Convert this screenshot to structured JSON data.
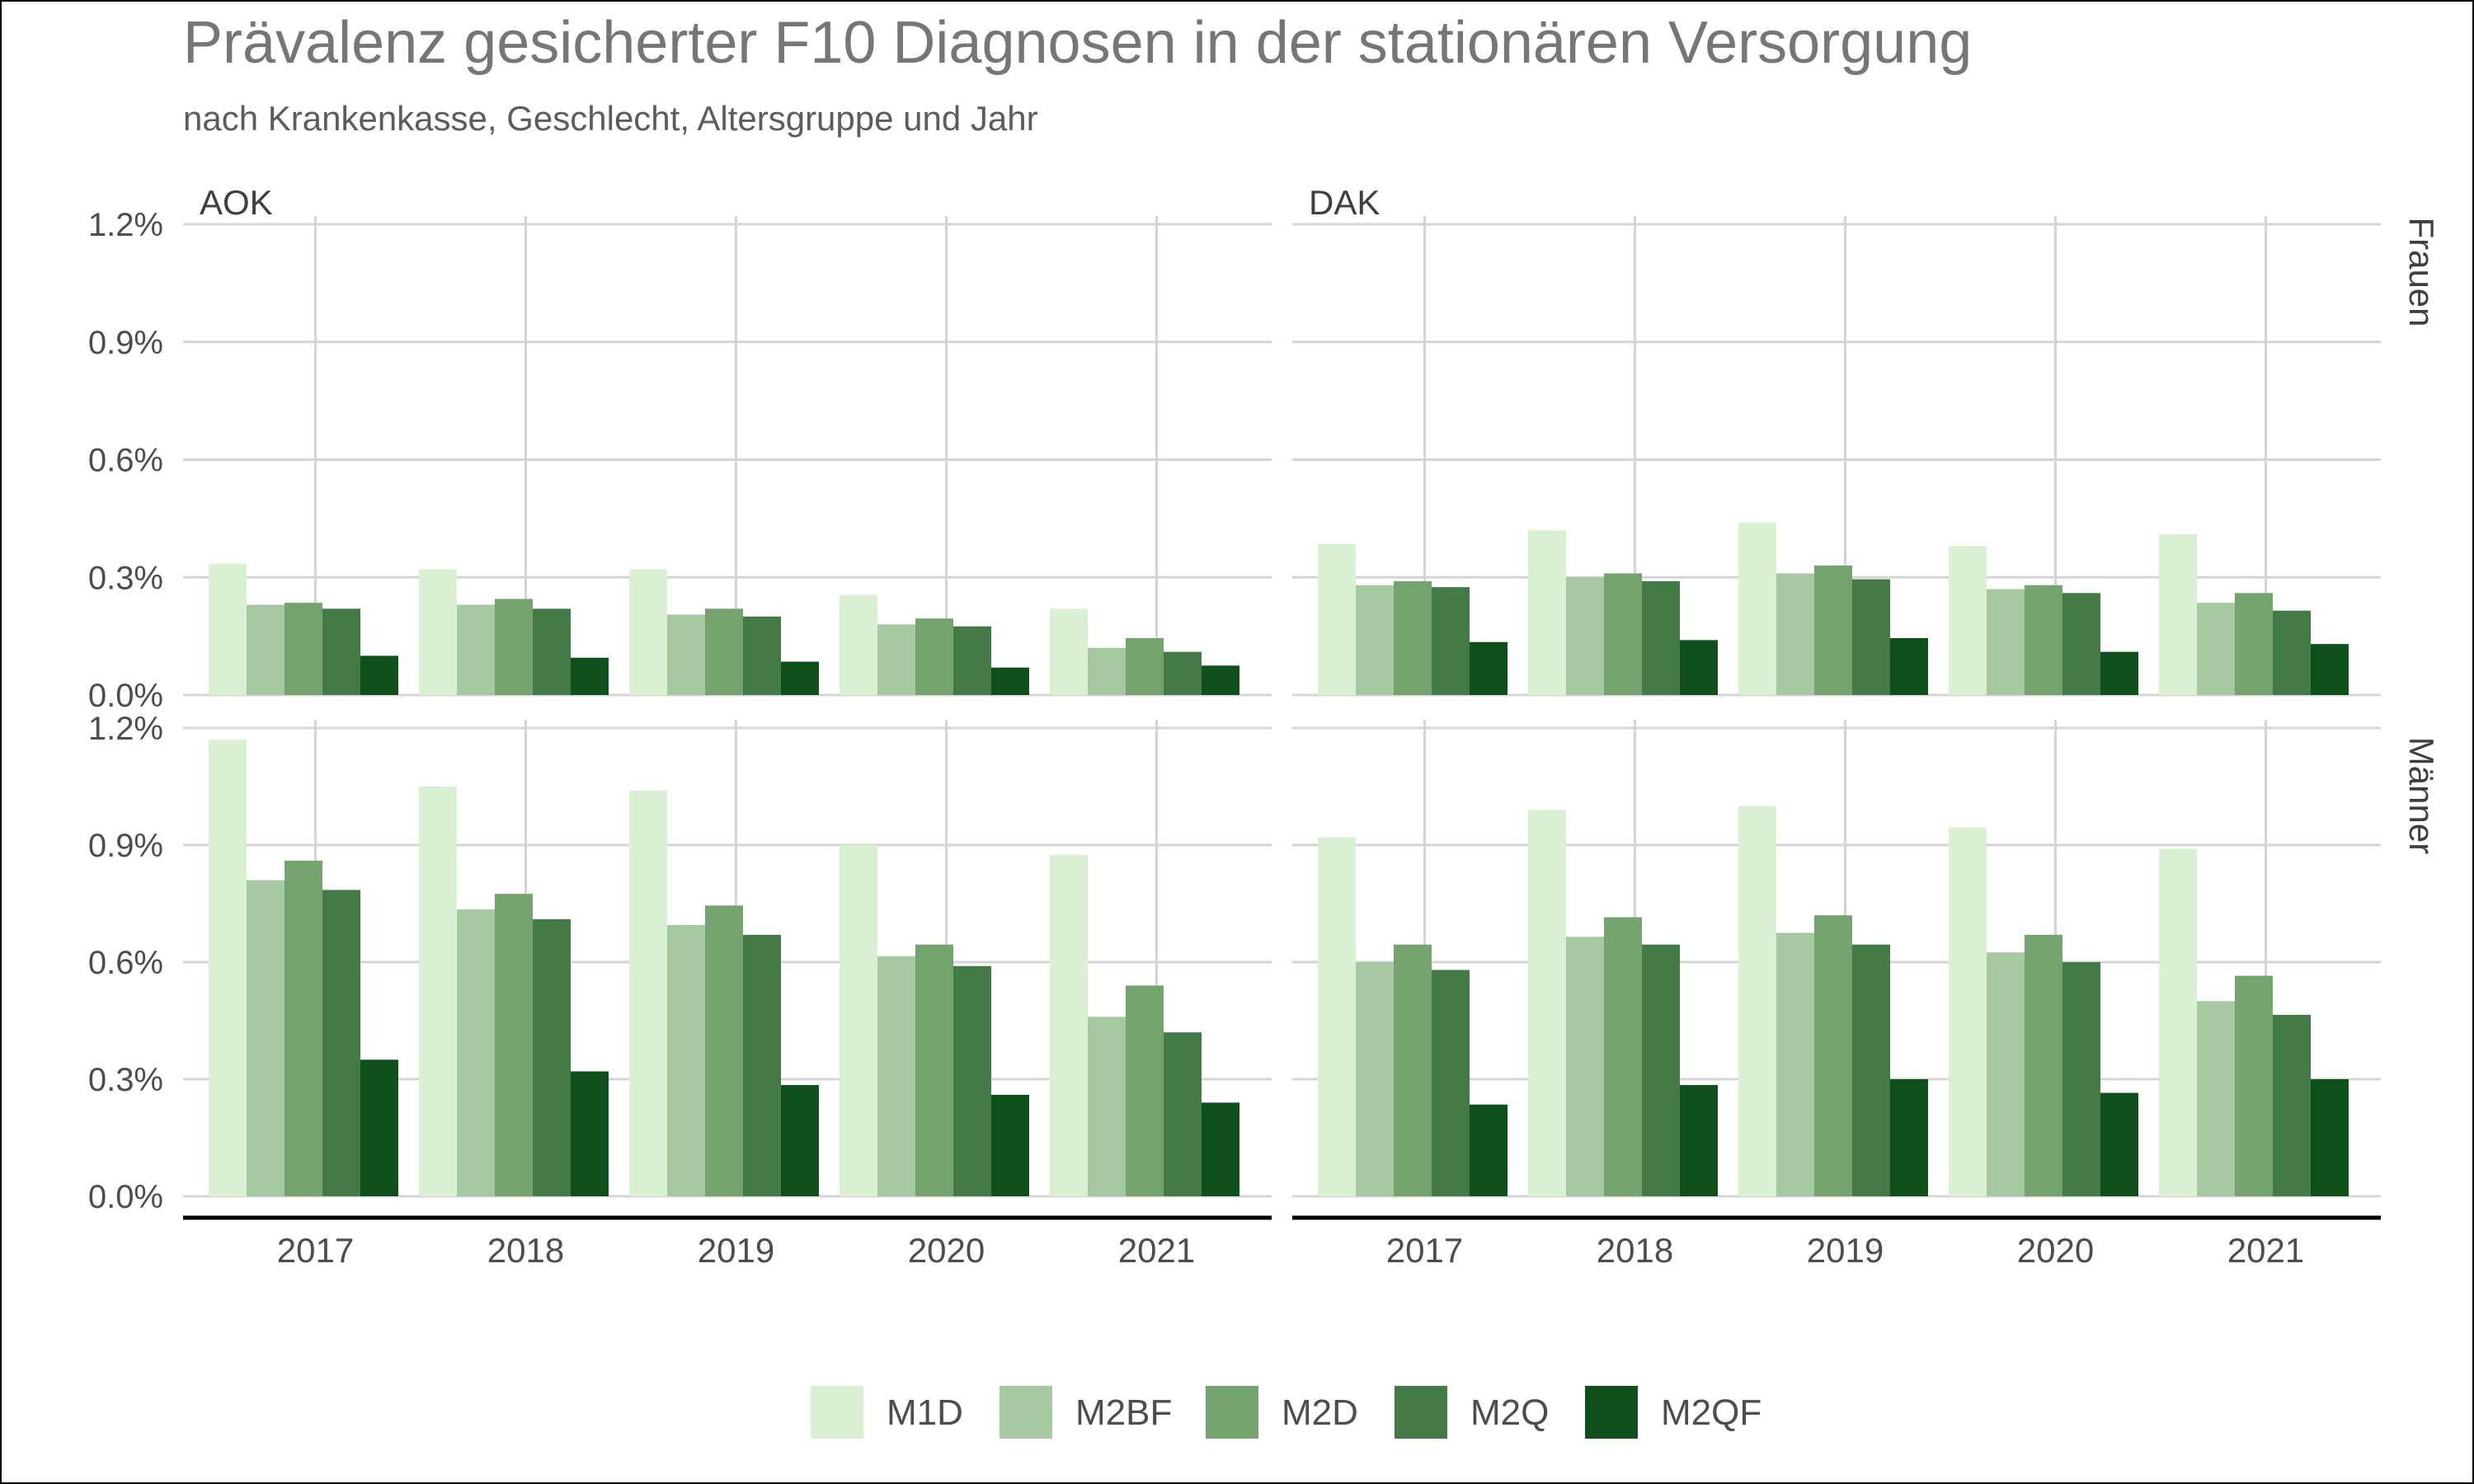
{
  "chart_data": {
    "type": "bar",
    "title": "Prävalenz gesicherter F10 Diagnosen in der stationären Versorgung",
    "subtitle": "nach Krankenkasse, Geschlecht, Altersgruppe und Jahr",
    "xlabel": "",
    "ylabel": "",
    "x": [
      "2017",
      "2018",
      "2019",
      "2020",
      "2021"
    ],
    "ylim": [
      0,
      1.2
    ],
    "yticks": [
      "0.0%",
      "0.3%",
      "0.6%",
      "0.9%",
      "1.2%"
    ],
    "column_facets": [
      "AOK",
      "DAK"
    ],
    "row_facets": [
      "Frauen",
      "Männer"
    ],
    "legend_position": "bottom",
    "grid": true,
    "series_names": [
      "M1D",
      "M2BF",
      "M2D",
      "M2Q",
      "M2QF"
    ],
    "colors": [
      "#d9f0d3",
      "#a6c8a0",
      "#74a370",
      "#437a48",
      "#0f4f1b"
    ],
    "panels": [
      {
        "column": "AOK",
        "row": "Frauen",
        "series": [
          {
            "name": "M1D",
            "values": [
              0.335,
              0.32,
              0.32,
              0.255,
              0.22
            ]
          },
          {
            "name": "M2BF",
            "values": [
              0.23,
              0.23,
              0.205,
              0.18,
              0.12
            ]
          },
          {
            "name": "M2D",
            "values": [
              0.235,
              0.245,
              0.22,
              0.195,
              0.145
            ]
          },
          {
            "name": "M2Q",
            "values": [
              0.22,
              0.22,
              0.2,
              0.175,
              0.11
            ]
          },
          {
            "name": "M2QF",
            "values": [
              0.1,
              0.095,
              0.085,
              0.07,
              0.075
            ]
          }
        ]
      },
      {
        "column": "DAK",
        "row": "Frauen",
        "series": [
          {
            "name": "M1D",
            "values": [
              0.385,
              0.42,
              0.44,
              0.38,
              0.41
            ]
          },
          {
            "name": "M2BF",
            "values": [
              0.28,
              0.3,
              0.31,
              0.27,
              0.235
            ]
          },
          {
            "name": "M2D",
            "values": [
              0.29,
              0.31,
              0.33,
              0.28,
              0.26
            ]
          },
          {
            "name": "M2Q",
            "values": [
              0.275,
              0.29,
              0.295,
              0.26,
              0.215
            ]
          },
          {
            "name": "M2QF",
            "values": [
              0.135,
              0.14,
              0.145,
              0.11,
              0.13
            ]
          }
        ]
      },
      {
        "column": "AOK",
        "row": "Männer",
        "series": [
          {
            "name": "M1D",
            "values": [
              1.17,
              1.05,
              1.04,
              0.9,
              0.875
            ]
          },
          {
            "name": "M2BF",
            "values": [
              0.81,
              0.735,
              0.695,
              0.615,
              0.46
            ]
          },
          {
            "name": "M2D",
            "values": [
              0.86,
              0.775,
              0.745,
              0.645,
              0.54
            ]
          },
          {
            "name": "M2Q",
            "values": [
              0.785,
              0.71,
              0.67,
              0.59,
              0.42
            ]
          },
          {
            "name": "M2QF",
            "values": [
              0.35,
              0.32,
              0.285,
              0.26,
              0.24
            ]
          }
        ]
      },
      {
        "column": "DAK",
        "row": "Männer",
        "series": [
          {
            "name": "M1D",
            "values": [
              0.92,
              0.99,
              1.0,
              0.945,
              0.89
            ]
          },
          {
            "name": "M2BF",
            "values": [
              0.6,
              0.665,
              0.675,
              0.625,
              0.5
            ]
          },
          {
            "name": "M2D",
            "values": [
              0.645,
              0.715,
              0.72,
              0.67,
              0.565
            ]
          },
          {
            "name": "M2Q",
            "values": [
              0.58,
              0.645,
              0.645,
              0.6,
              0.465
            ]
          },
          {
            "name": "M2QF",
            "values": [
              0.235,
              0.285,
              0.3,
              0.265,
              0.3
            ]
          }
        ]
      }
    ]
  }
}
